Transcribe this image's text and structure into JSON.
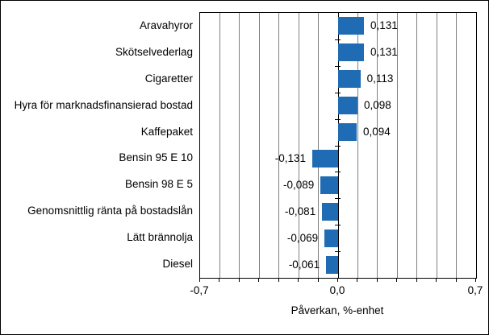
{
  "page": {
    "background": "#ffffff",
    "border_color": "#000000"
  },
  "chart_data": {
    "type": "bar",
    "orientation": "horizontal",
    "title": "",
    "xlabel": "Påverkan, %-enhet",
    "xlim": [
      -0.7,
      0.7
    ],
    "gridline_step": 0.1,
    "grid": "vertical",
    "legend": "none",
    "x_ticks": [
      {
        "value": -0.7,
        "label": "-0,7"
      },
      {
        "value": 0.0,
        "label": "0,0"
      },
      {
        "value": 0.7,
        "label": "0,7"
      }
    ],
    "categories": [
      "Aravahyror",
      "Skötselvederlag",
      "Cigaretter",
      "Hyra för marknadsfinansierad bostad",
      "Kaffepaket",
      "Bensin 95 E 10",
      "Bensin 98 E 5",
      "Genomsnittlig ränta på bostadslån",
      "Lätt brännolja",
      "Diesel"
    ],
    "values": [
      0.131,
      0.131,
      0.113,
      0.098,
      0.094,
      -0.131,
      -0.089,
      -0.081,
      -0.069,
      -0.061
    ],
    "value_labels": [
      "0,131",
      "0,131",
      "0,113",
      "0,098",
      "0,094",
      "-0,131",
      "-0,089",
      "-0,081",
      "-0,069",
      "-0,061"
    ],
    "colors": {
      "bar": "#1f6cb4",
      "gridline": "#808080",
      "axis": "#000000",
      "text": "#000000"
    }
  }
}
